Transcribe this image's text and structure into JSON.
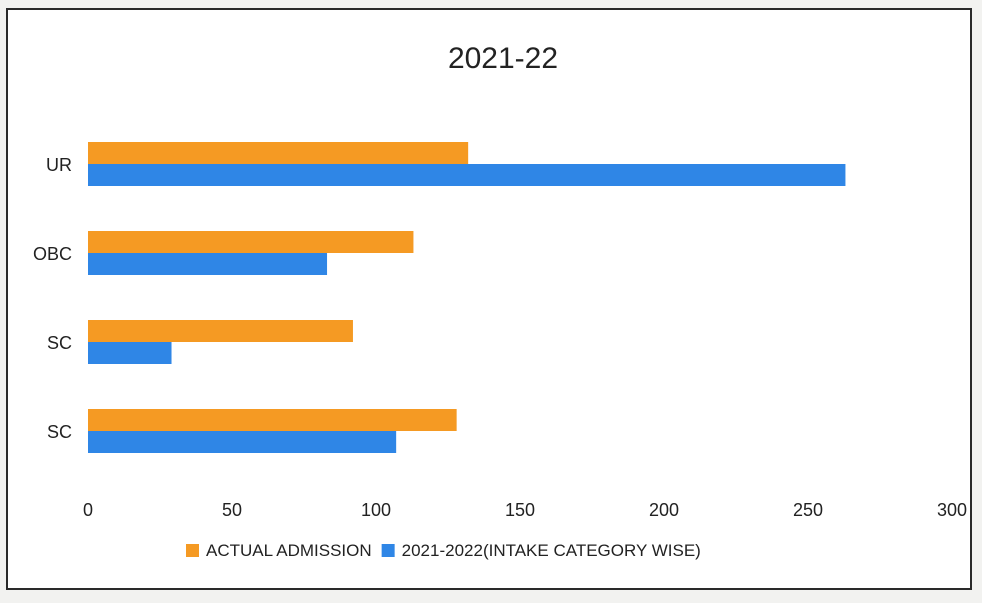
{
  "chart_data": {
    "type": "bar",
    "orientation": "horizontal",
    "title": "2021-22",
    "xlabel": "",
    "ylabel": "",
    "categories": [
      "UR",
      "OBC",
      "SC",
      "SC"
    ],
    "xlim": [
      0,
      300
    ],
    "x_ticks": [
      "0",
      "50",
      "100",
      "150",
      "200",
      "250",
      "300"
    ],
    "series": [
      {
        "name": "ACTUAL ADMISSION",
        "color": "#f59a23",
        "values": [
          132,
          113,
          92,
          128
        ]
      },
      {
        "name": "2021-2022(INTAKE CATEGORY WISE)",
        "color": "#2f86e6",
        "values": [
          263,
          83,
          29,
          107
        ]
      }
    ],
    "grid": false,
    "legend_position": "bottom"
  }
}
